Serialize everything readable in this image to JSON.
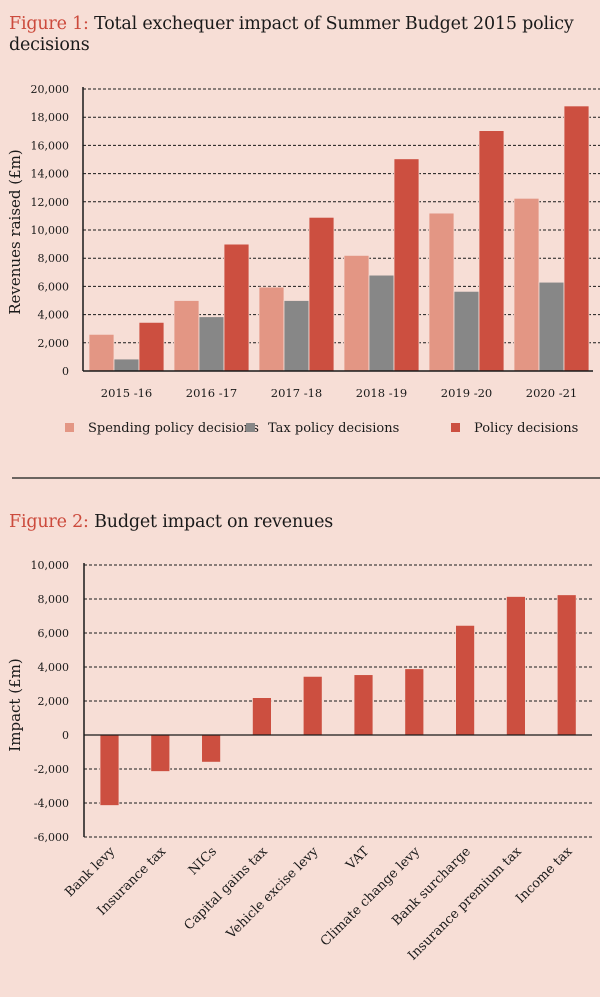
{
  "figure1": {
    "label": "Figure 1:",
    "title": "Total exchequer impact of Summer Budget 2015 policy decisions"
  },
  "figure2": {
    "label": "Figure 2:",
    "title": "Budget impact on revenues"
  },
  "colors": {
    "spending": "#e39684",
    "tax": "#878787",
    "policy": "#cc4f40",
    "label_accent": "#cc4a3c",
    "background": "#f7ded6"
  },
  "chart_data": [
    {
      "type": "bar",
      "title": "Figure 1: Total exchequer impact of Summer Budget 2015 policy decisions",
      "xlabel": "",
      "ylabel": "Revenues raised (£m)",
      "ylim": [
        0,
        20000
      ],
      "yticks": [
        0,
        2000,
        4000,
        6000,
        8000,
        10000,
        12000,
        14000,
        16000,
        18000,
        20000
      ],
      "ytick_labels": [
        "0",
        "2,000",
        "4,000",
        "6,000",
        "8,000",
        "10,000",
        "12,000",
        "14,000",
        "16,000",
        "18,000",
        "20,000"
      ],
      "grid": true,
      "legend_position": "bottom",
      "categories": [
        "2015 -16",
        "2016 -17",
        "2017 -18",
        "2018 -19",
        "2019 -20",
        "2020 -21"
      ],
      "series": [
        {
          "name": "Spending policy decisions",
          "color": "#e39684",
          "values": [
            2600,
            5000,
            5950,
            8200,
            11200,
            12250
          ]
        },
        {
          "name": "Tax policy decisions",
          "color": "#878787",
          "values": [
            850,
            3850,
            5000,
            6800,
            5650,
            6300
          ]
        },
        {
          "name": "Policy decisions",
          "color": "#cc4f40",
          "values": [
            3450,
            9000,
            10900,
            15050,
            17050,
            18800
          ]
        }
      ]
    },
    {
      "type": "bar",
      "title": "Figure 2: Budget impact on revenues",
      "xlabel": "",
      "ylabel": "Impact (£m)",
      "ylim": [
        -6000,
        10000
      ],
      "yticks": [
        -6000,
        -4000,
        -2000,
        0,
        2000,
        4000,
        6000,
        8000,
        10000
      ],
      "ytick_labels": [
        "-6,000",
        "-4,000",
        "-2,000",
        "0",
        "2,000",
        "4,000",
        "6,000",
        "8,000",
        "10,000"
      ],
      "grid": true,
      "categories": [
        "Bank levy",
        "Insurance tax",
        "NICs",
        "Capital gains tax",
        "Vehicle excise levy",
        "VAT",
        "Climate change levy",
        "Bank surcharge",
        "Insurance premium tax",
        "Income tax"
      ],
      "values": [
        -4150,
        -2150,
        -1600,
        2200,
        3450,
        3550,
        3900,
        6450,
        8150,
        8250
      ],
      "color": "#cc4f40"
    }
  ]
}
